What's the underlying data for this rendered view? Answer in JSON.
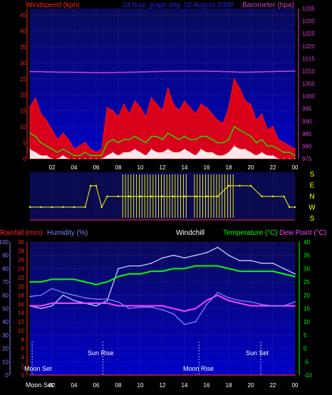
{
  "header": {
    "windspeed_label": "Windspeed (kph)",
    "title": "24 hour graph day, 02 August 2008",
    "barometer_label": "Barometer (hpa)"
  },
  "labels": {
    "rainfall": "Rainfall (mm)",
    "humidity": "Humidity (%)",
    "windchill": "Windchill",
    "temperature": "Temperature (°C)",
    "dewpoint": "Dew Point (°C)",
    "moon_set": "Moon Set",
    "sun_rise": "Sun Rise",
    "moon_rise": "Moon Rise",
    "sun_set": "Sun Set",
    "bottom_moon_set": "Moon Set"
  },
  "colors": {
    "plot_bg_top": "#0a0a5a",
    "plot_bg_bottom": "#0000c8",
    "wind": "#ff1010",
    "gust_fill": "#ff0000",
    "wind_avg": "#00ff00",
    "wind_min": "#ffffff",
    "barometer": "#d040d0",
    "direction": "#ffff00",
    "windchill": "#c8c8ff",
    "temperature": "#00ff00",
    "dewpoint": "#ff40ff",
    "humidity": "#8080ff",
    "rainfall": "#ff2020",
    "event_markers": "#ffffff"
  },
  "chart_data": [
    {
      "type": "area",
      "name": "wind",
      "xlabel": "",
      "x_ticks": [
        "02",
        "04",
        "06",
        "08",
        "10",
        "12",
        "14",
        "16",
        "18",
        "20",
        "22",
        "00"
      ],
      "y_left_label": "Windspeed (kph)",
      "y_left_ticks": [
        "0",
        "5",
        "10",
        "15",
        "20",
        "25",
        "30",
        "35",
        "40",
        "45"
      ],
      "y_left_lim": [
        0,
        47
      ],
      "y_right_label": "Barometer (hpa)",
      "y_right_ticks": [
        "975",
        "980",
        "985",
        "990",
        "995",
        "1000",
        "1005",
        "1010",
        "1015",
        "1020",
        "1025",
        "1030",
        "1035"
      ],
      "y_right_lim": [
        975,
        1035
      ],
      "hours": [
        0,
        0.5,
        1,
        1.5,
        2,
        2.5,
        3,
        3.5,
        4,
        4.5,
        5,
        5.5,
        6,
        6.5,
        7,
        7.5,
        8,
        8.5,
        9,
        9.5,
        10,
        10.5,
        11,
        11.5,
        12,
        12.5,
        13,
        13.5,
        14,
        14.5,
        15,
        15.5,
        16,
        16.5,
        17,
        17.5,
        18,
        18.5,
        19,
        19.5,
        20,
        20.5,
        21,
        21.5,
        22,
        22.5,
        23,
        23.5,
        24
      ],
      "series": [
        {
          "name": "gust",
          "values": [
            16,
            19,
            14,
            12,
            9,
            6,
            8,
            6,
            3,
            4,
            5,
            3,
            2,
            3,
            16,
            15,
            13,
            17,
            14,
            18,
            16,
            13,
            19,
            17,
            15,
            22,
            17,
            15,
            18,
            16,
            14,
            17,
            16,
            14,
            12,
            11,
            16,
            25,
            22,
            18,
            17,
            12,
            14,
            9,
            10,
            6,
            5,
            4,
            3
          ]
        },
        {
          "name": "average",
          "values": [
            8,
            7,
            5,
            4,
            3,
            2,
            3,
            2,
            1,
            1,
            2,
            1,
            1,
            1,
            5,
            6,
            5,
            6,
            6,
            7,
            6,
            5,
            7,
            7,
            6,
            8,
            7,
            6,
            7,
            6,
            6,
            7,
            7,
            6,
            5,
            5,
            6,
            10,
            9,
            8,
            7,
            5,
            6,
            4,
            4,
            3,
            2,
            2,
            1
          ]
        },
        {
          "name": "minimum",
          "values": [
            3,
            2,
            1,
            1,
            0,
            0,
            1,
            0,
            0,
            0,
            0,
            0,
            0,
            0,
            1,
            2,
            1,
            2,
            2,
            3,
            2,
            1,
            3,
            2,
            2,
            3,
            2,
            2,
            3,
            2,
            1,
            3,
            2,
            2,
            1,
            1,
            2,
            4,
            3,
            3,
            2,
            1,
            2,
            1,
            1,
            0,
            0,
            0,
            0
          ]
        },
        {
          "name": "barometer",
          "values": [
            1009.8,
            1009.8,
            1009.8,
            1009.7,
            1009.7,
            1009.6,
            1009.6,
            1009.6,
            1009.5,
            1009.5,
            1009.5,
            1009.4,
            1009.4,
            1009.4,
            1009.4,
            1009.4,
            1009.5,
            1009.5,
            1009.6,
            1009.6,
            1009.7,
            1009.7,
            1009.8,
            1009.8,
            1009.9,
            1009.9,
            1010.0,
            1010.0,
            1010.0,
            1010.0,
            1010.0,
            1010.0,
            1010.0,
            1009.9,
            1009.9,
            1009.8,
            1009.8,
            1009.7,
            1009.6,
            1009.6,
            1009.6,
            1009.7,
            1009.7,
            1009.8,
            1009.8,
            1009.9,
            1009.9,
            1010.0,
            1010.0
          ]
        }
      ]
    },
    {
      "type": "scatter",
      "name": "wind_direction",
      "x_ticks": [
        "02",
        "04",
        "06",
        "08",
        "10",
        "12",
        "14",
        "16",
        "18",
        "20",
        "22",
        "00"
      ],
      "y_ticks": [
        "S",
        "E",
        "N",
        "W",
        "S"
      ],
      "hours": [
        0,
        1,
        2,
        3,
        4,
        5,
        5.5,
        6,
        6.5,
        7,
        8,
        9,
        10,
        11,
        12,
        13,
        14,
        15,
        16,
        17,
        18,
        19,
        20,
        21,
        22,
        23,
        23.5,
        24
      ],
      "values": [
        "E",
        "E",
        "E",
        "E",
        "E",
        "E",
        "W",
        "W",
        "E",
        "N",
        "N",
        "N",
        "N",
        "N",
        "N",
        "N",
        "N",
        "N",
        "N",
        "N",
        "W",
        "W",
        "W",
        "N",
        "N",
        "N",
        "E",
        "E"
      ]
    },
    {
      "type": "line",
      "name": "temperature_humidity",
      "x_ticks": [
        "02",
        "04",
        "06",
        "08",
        "10",
        "12",
        "14",
        "16",
        "18",
        "20",
        "22",
        "00"
      ],
      "y_humidity_ticks": [
        "0",
        "10",
        "20",
        "30",
        "40",
        "50",
        "60",
        "70",
        "80",
        "90",
        "100"
      ],
      "y_humidity_lim": [
        0,
        100
      ],
      "y_rain_ticks": [
        "0",
        "2",
        "4",
        "6",
        "8",
        "10",
        "12",
        "14",
        "16",
        "18",
        "20",
        "22",
        "24",
        "26",
        "28",
        "30"
      ],
      "y_rain_lim": [
        0,
        30
      ],
      "y_temp_ticks": [
        "-10",
        "-5",
        "0",
        "5",
        "10",
        "15",
        "20",
        "25",
        "30",
        "35",
        "40"
      ],
      "y_temp_lim": [
        -10,
        40
      ],
      "hours": [
        0,
        1,
        2,
        3,
        4,
        5,
        6,
        7,
        8,
        9,
        10,
        11,
        12,
        13,
        14,
        15,
        16,
        17,
        18,
        19,
        20,
        21,
        22,
        23,
        24
      ],
      "series": [
        {
          "name": "Windchill",
          "values": [
            16,
            15,
            16,
            20,
            18,
            17,
            16,
            18,
            30,
            31,
            31,
            32,
            34,
            35,
            34,
            35,
            36,
            38,
            35,
            33,
            33,
            32,
            32,
            30,
            28
          ]
        },
        {
          "name": "Temperature (°C)",
          "values": [
            25,
            25,
            26,
            26,
            26,
            25,
            24,
            25,
            27,
            28,
            28,
            29,
            29,
            30,
            30,
            31,
            31,
            31,
            30,
            29,
            29,
            29,
            29,
            28,
            27
          ]
        },
        {
          "name": "Dew Point (°C)",
          "values": [
            16,
            16,
            17,
            17,
            17,
            17,
            17,
            17,
            16,
            16,
            16,
            16,
            16,
            15,
            14,
            15,
            18,
            20,
            18,
            17,
            16,
            16,
            16,
            16,
            16
          ]
        },
        {
          "name": "Humidity (%)",
          "values": [
            59,
            60,
            65,
            62,
            60,
            58,
            57,
            57,
            55,
            50,
            51,
            51,
            49,
            46,
            38,
            40,
            53,
            62,
            58,
            56,
            55,
            53,
            52,
            52,
            55
          ]
        },
        {
          "name": "Rainfall (mm)",
          "values": [
            0,
            0,
            0,
            0,
            0,
            0,
            0,
            0,
            0,
            0,
            0,
            0,
            0,
            0,
            0,
            0,
            0,
            0,
            0,
            0,
            0,
            0,
            0,
            0,
            0
          ]
        }
      ],
      "events": [
        {
          "label": "Moon Set",
          "hour": 0.2
        },
        {
          "label": "Sun Rise",
          "hour": 6.6
        },
        {
          "label": "Moon Rise",
          "hour": 15.3
        },
        {
          "label": "Sun Set",
          "hour": 20.9
        }
      ]
    }
  ]
}
